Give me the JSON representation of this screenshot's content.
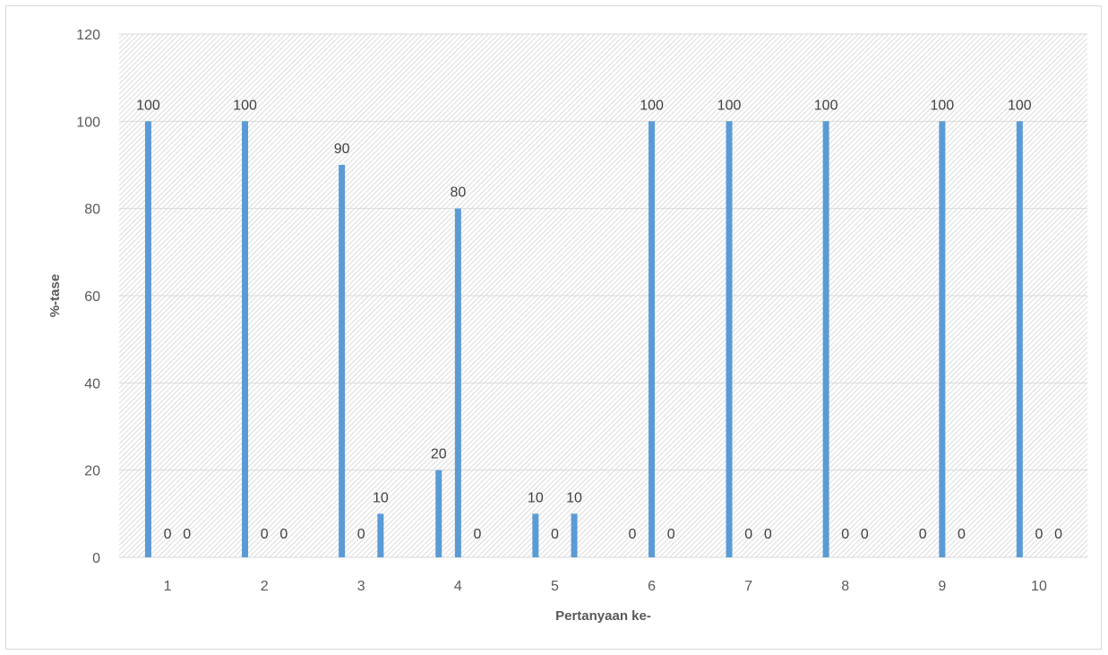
{
  "chart_data": {
    "type": "bar",
    "title": "",
    "xlabel": "Pertanyaan ke-",
    "ylabel": "%-tase",
    "ylim": [
      0,
      120
    ],
    "yticks": [
      0,
      20,
      40,
      60,
      80,
      100,
      120
    ],
    "grid": true,
    "legend": "none",
    "bar_color": "#5b9bd5",
    "categories": [
      "1",
      "2",
      "3",
      "4",
      "5",
      "6",
      "7",
      "8",
      "9",
      "10"
    ],
    "series": [
      {
        "values": [
          100,
          100,
          90,
          20,
          10,
          0,
          100,
          100,
          0,
          100
        ]
      },
      {
        "values": [
          0,
          0,
          0,
          80,
          0,
          100,
          0,
          0,
          100,
          0
        ]
      },
      {
        "values": [
          0,
          0,
          10,
          0,
          10,
          0,
          0,
          0,
          0,
          0
        ]
      }
    ]
  }
}
